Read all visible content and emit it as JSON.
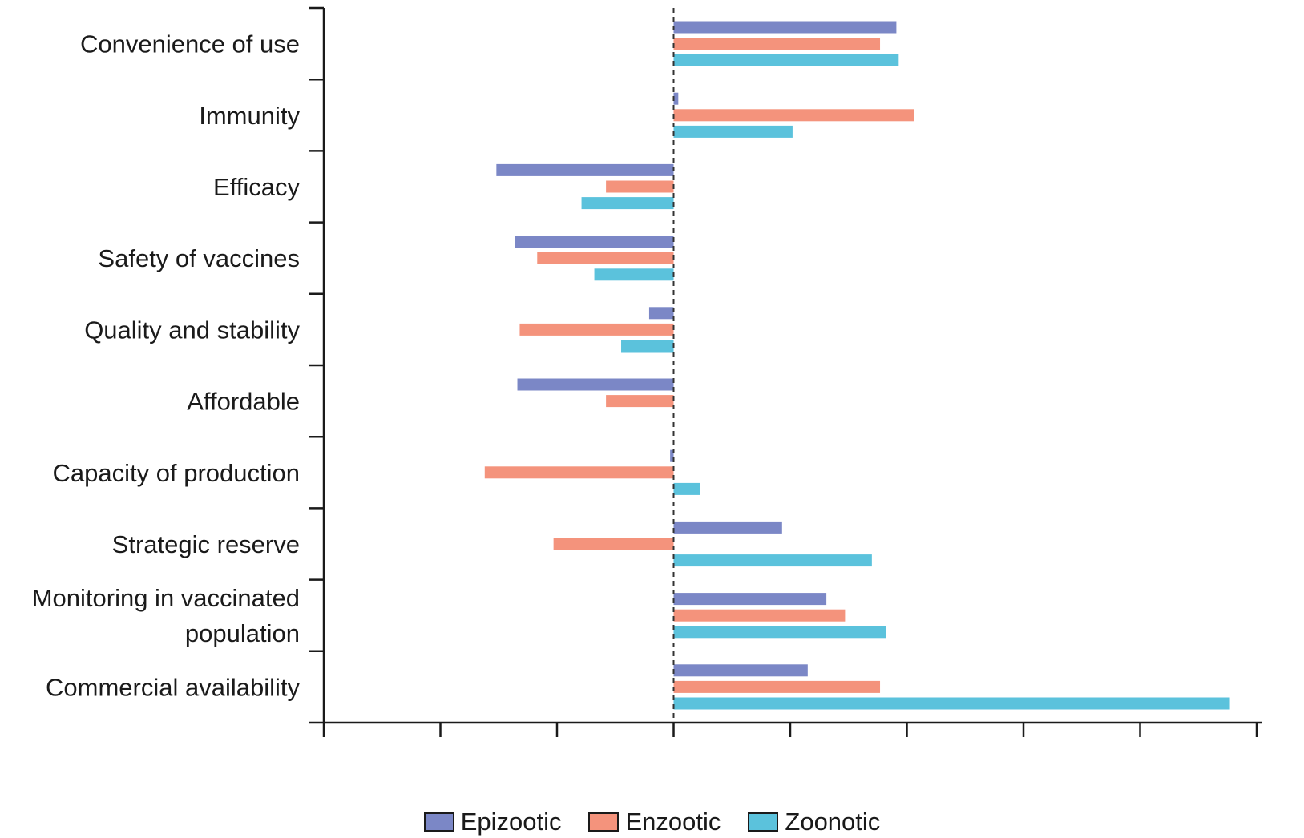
{
  "chart_data": {
    "type": "bar",
    "orientation": "horizontal",
    "categories": [
      "Convenience of use",
      "Immunity",
      "Efficacy",
      "Safety of vaccines",
      "Quality and stability",
      "Affordable",
      "Capacity of production",
      "Strategic reserve",
      "Monitoring in vaccinated population",
      "Commercial availability"
    ],
    "series": [
      {
        "name": "Epizootic",
        "color": "#7b87c6",
        "values": [
          1.91,
          0.04,
          -1.52,
          -1.36,
          -0.21,
          -1.34,
          -0.03,
          0.93,
          1.31,
          1.15
        ]
      },
      {
        "name": "Enzootic",
        "color": "#f4937c",
        "values": [
          1.77,
          2.06,
          -0.58,
          -1.17,
          -1.32,
          -0.58,
          -1.62,
          -1.03,
          1.47,
          1.77
        ]
      },
      {
        "name": "Zoonotic",
        "color": "#5bc2dc",
        "values": [
          1.93,
          1.02,
          -0.79,
          -0.68,
          -0.45,
          0,
          0.23,
          1.7,
          1.82,
          4.77
        ]
      }
    ],
    "xlim": [
      -3,
      5
    ],
    "xticks": [
      -3,
      -2,
      -1,
      0,
      1,
      2,
      3,
      4,
      5
    ],
    "tick_labels_shown": false,
    "zero_line": "dashed",
    "grid": false,
    "legend_position": "bottom-center"
  }
}
